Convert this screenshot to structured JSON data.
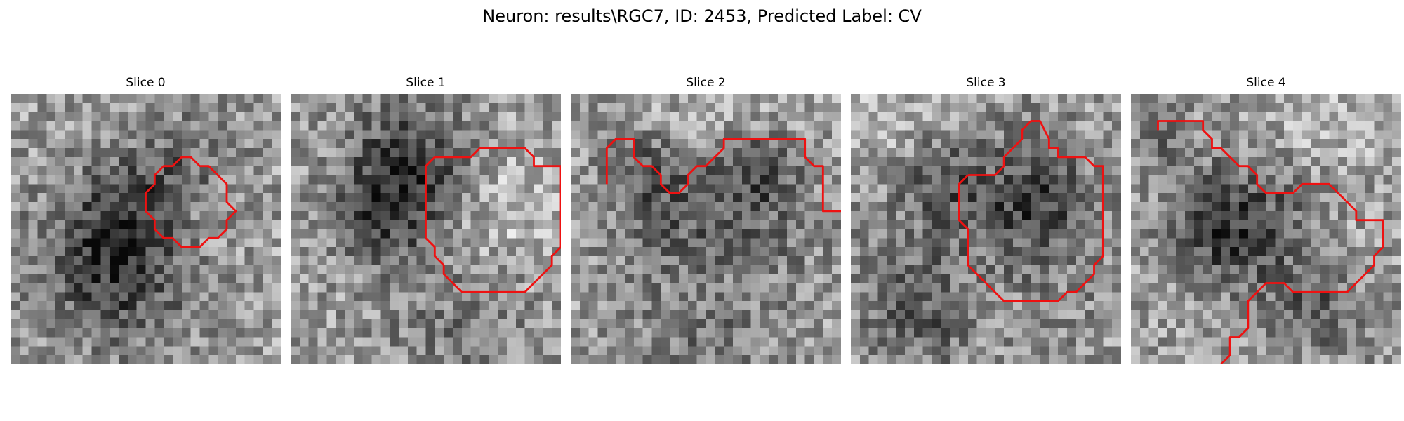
{
  "figure": {
    "title": "Neuron: results\\RGC7, ID: 2453, Predicted Label: CV",
    "panels": [
      {
        "title": "Slice 0",
        "seed": 11,
        "dark": [
          [
            11,
            18,
            6,
            1.0
          ],
          [
            15,
            11,
            4,
            0.5
          ],
          [
            20,
            7,
            4,
            0.4
          ]
        ],
        "light": [
          [
            19,
            12,
            4,
            0.5
          ]
        ],
        "contour": [
          [
            18,
            8
          ],
          [
            19,
            7
          ],
          [
            20,
            7
          ],
          [
            21,
            8
          ],
          [
            22,
            8
          ],
          [
            23,
            9
          ],
          [
            24,
            10
          ],
          [
            24,
            12
          ],
          [
            25,
            13
          ],
          [
            24,
            14
          ],
          [
            24,
            15
          ],
          [
            23,
            16
          ],
          [
            22,
            16
          ],
          [
            21,
            17
          ],
          [
            19,
            17
          ],
          [
            18,
            16
          ],
          [
            17,
            16
          ],
          [
            16,
            15
          ],
          [
            16,
            14
          ],
          [
            15,
            13
          ],
          [
            15,
            11
          ],
          [
            16,
            10
          ],
          [
            16,
            9
          ],
          [
            17,
            8
          ],
          [
            18,
            8
          ]
        ]
      },
      {
        "title": "Slice 1",
        "seed": 23,
        "dark": [
          [
            13,
            7,
            5,
            0.8
          ],
          [
            10,
            13,
            4,
            0.6
          ],
          [
            18,
            25,
            6,
            0.3
          ]
        ],
        "light": [
          [
            23,
            12,
            5,
            0.5
          ]
        ],
        "contour": [
          [
            16,
            7
          ],
          [
            20,
            7
          ],
          [
            21,
            6
          ],
          [
            26,
            6
          ],
          [
            27,
            7
          ],
          [
            27,
            8
          ],
          [
            30,
            8
          ],
          [
            30,
            17
          ],
          [
            29,
            18
          ],
          [
            29,
            19
          ],
          [
            26,
            22
          ],
          [
            19,
            22
          ],
          [
            18,
            21
          ],
          [
            17,
            20
          ],
          [
            17,
            19
          ],
          [
            16,
            18
          ],
          [
            16,
            17
          ],
          [
            15,
            16
          ],
          [
            15,
            8
          ],
          [
            16,
            7
          ]
        ]
      },
      {
        "title": "Slice 2",
        "seed": 37,
        "dark": [
          [
            15,
            15,
            7,
            0.7
          ],
          [
            8,
            8,
            3,
            0.5
          ],
          [
            20,
            8,
            3,
            0.5
          ],
          [
            15,
            27,
            5,
            0.4
          ]
        ],
        "light": [
          [
            15,
            21,
            5,
            0.6
          ],
          [
            15,
            3,
            5,
            0.4
          ]
        ],
        "contour": [
          [
            4,
            10
          ],
          [
            4,
            6
          ],
          [
            5,
            5
          ],
          [
            7,
            5
          ],
          [
            7,
            7
          ],
          [
            8,
            8
          ],
          [
            9,
            8
          ],
          [
            10,
            9
          ],
          [
            10,
            10
          ],
          [
            11,
            11
          ],
          [
            12,
            11
          ],
          [
            13,
            10
          ],
          [
            13,
            9
          ],
          [
            14,
            8
          ],
          [
            15,
            8
          ],
          [
            16,
            7
          ],
          [
            17,
            6
          ],
          [
            17,
            5
          ],
          [
            26,
            5
          ],
          [
            26,
            7
          ],
          [
            27,
            8
          ],
          [
            28,
            8
          ],
          [
            28,
            13
          ],
          [
            30,
            13
          ]
        ]
      },
      {
        "title": "Slice 3",
        "seed": 41,
        "dark": [
          [
            15,
            16,
            8,
            0.6
          ],
          [
            6,
            24,
            4,
            0.5
          ],
          [
            20,
            11,
            4,
            0.5
          ],
          [
            9,
            8,
            3,
            0.4
          ]
        ],
        "light": [
          [
            15,
            20,
            5,
            0.5
          ],
          [
            5,
            3,
            4,
            0.4
          ]
        ],
        "contour": [
          [
            13,
            9
          ],
          [
            16,
            9
          ],
          [
            17,
            8
          ],
          [
            17,
            7
          ],
          [
            18,
            6
          ],
          [
            19,
            5
          ],
          [
            19,
            4
          ],
          [
            20,
            3
          ],
          [
            21,
            3
          ],
          [
            22,
            5
          ],
          [
            22,
            6
          ],
          [
            23,
            6
          ],
          [
            23,
            7
          ],
          [
            26,
            7
          ],
          [
            27,
            8
          ],
          [
            28,
            8
          ],
          [
            28,
            18
          ],
          [
            27,
            19
          ],
          [
            27,
            20
          ],
          [
            25,
            22
          ],
          [
            24,
            22
          ],
          [
            23,
            23
          ],
          [
            17,
            23
          ],
          [
            16,
            22
          ],
          [
            15,
            21
          ],
          [
            14,
            20
          ],
          [
            13,
            19
          ],
          [
            13,
            15
          ],
          [
            12,
            14
          ],
          [
            12,
            10
          ],
          [
            13,
            9
          ]
        ]
      },
      {
        "title": "Slice 4",
        "seed": 53,
        "dark": [
          [
            9,
            15,
            4,
            0.6
          ],
          [
            15,
            12,
            6,
            0.5
          ],
          [
            20,
            23,
            4,
            0.5
          ],
          [
            3,
            4,
            2,
            0.4
          ]
        ],
        "light": [
          [
            20,
            4,
            5,
            0.5
          ],
          [
            22,
            17,
            3,
            0.4
          ]
        ],
        "contour": [
          [
            3,
            4
          ],
          [
            3,
            3
          ],
          [
            8,
            3
          ],
          [
            8,
            4
          ],
          [
            9,
            5
          ],
          [
            9,
            6
          ],
          [
            10,
            6
          ],
          [
            11,
            7
          ],
          [
            12,
            8
          ],
          [
            13,
            8
          ],
          [
            14,
            9
          ],
          [
            14,
            10
          ],
          [
            15,
            11
          ],
          [
            18,
            11
          ],
          [
            19,
            10
          ],
          [
            22,
            10
          ],
          [
            23,
            11
          ],
          [
            24,
            12
          ],
          [
            25,
            13
          ],
          [
            25,
            14
          ],
          [
            28,
            14
          ],
          [
            28,
            17
          ],
          [
            27,
            18
          ],
          [
            27,
            19
          ],
          [
            24,
            22
          ],
          [
            18,
            22
          ],
          [
            17,
            21
          ],
          [
            15,
            21
          ],
          [
            14,
            22
          ],
          [
            13,
            23
          ],
          [
            13,
            26
          ],
          [
            12,
            27
          ],
          [
            11,
            27
          ],
          [
            11,
            29
          ],
          [
            10,
            30
          ]
        ]
      }
    ]
  }
}
